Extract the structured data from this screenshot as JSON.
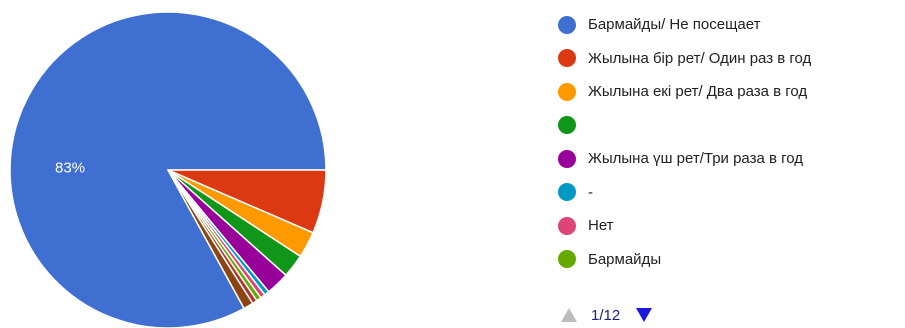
{
  "chart_data": {
    "type": "pie",
    "slices": [
      {
        "label": "Бармайды/ Не посещает",
        "value": 83,
        "color": "#3f6fd1",
        "data_label": "83%"
      },
      {
        "label": "Жылына бір рет/ Один раз в год",
        "value": 6.5,
        "color": "#dc3912",
        "data_label": ""
      },
      {
        "label": "Жылына екі рет/ Два раза в год",
        "value": 2.7,
        "color": "#ff9900",
        "data_label": ""
      },
      {
        "label": "",
        "value": 2.4,
        "color": "#109618",
        "data_label": ""
      },
      {
        "label": "Жылына үш рет/Три раза в год",
        "value": 2.4,
        "color": "#990099",
        "data_label": ""
      },
      {
        "label": "-",
        "value": 0.5,
        "color": "#0099c6",
        "data_label": ""
      },
      {
        "label": "Нет",
        "value": 0.5,
        "color": "#dd4477",
        "data_label": ""
      },
      {
        "label": "Бармайды",
        "value": 0.5,
        "color": "#66aa00",
        "data_label": ""
      },
      {
        "label": "",
        "value": 0.5,
        "color": "#b82e2e",
        "data_label": ""
      },
      {
        "label": "",
        "value": 1.0,
        "color": "#8b4513",
        "data_label": ""
      }
    ],
    "legend_position": "right"
  },
  "legend": {
    "items": [
      {
        "label": "Бармайды/ Не посещает",
        "color": "#3f6fd1"
      },
      {
        "label": "Жылына бір рет/ Один раз в год",
        "color": "#dc3912"
      },
      {
        "label": "Жылына екі рет/ Два раза в год",
        "color": "#ff9900"
      },
      {
        "label": "",
        "color": "#109618"
      },
      {
        "label": "Жылына үш рет/Три раза в год",
        "color": "#990099"
      },
      {
        "label": "-",
        "color": "#0099c6"
      },
      {
        "label": "Нет",
        "color": "#dd4477"
      },
      {
        "label": "Бармайды",
        "color": "#66aa00"
      }
    ]
  },
  "pager": {
    "text": "1/12"
  }
}
